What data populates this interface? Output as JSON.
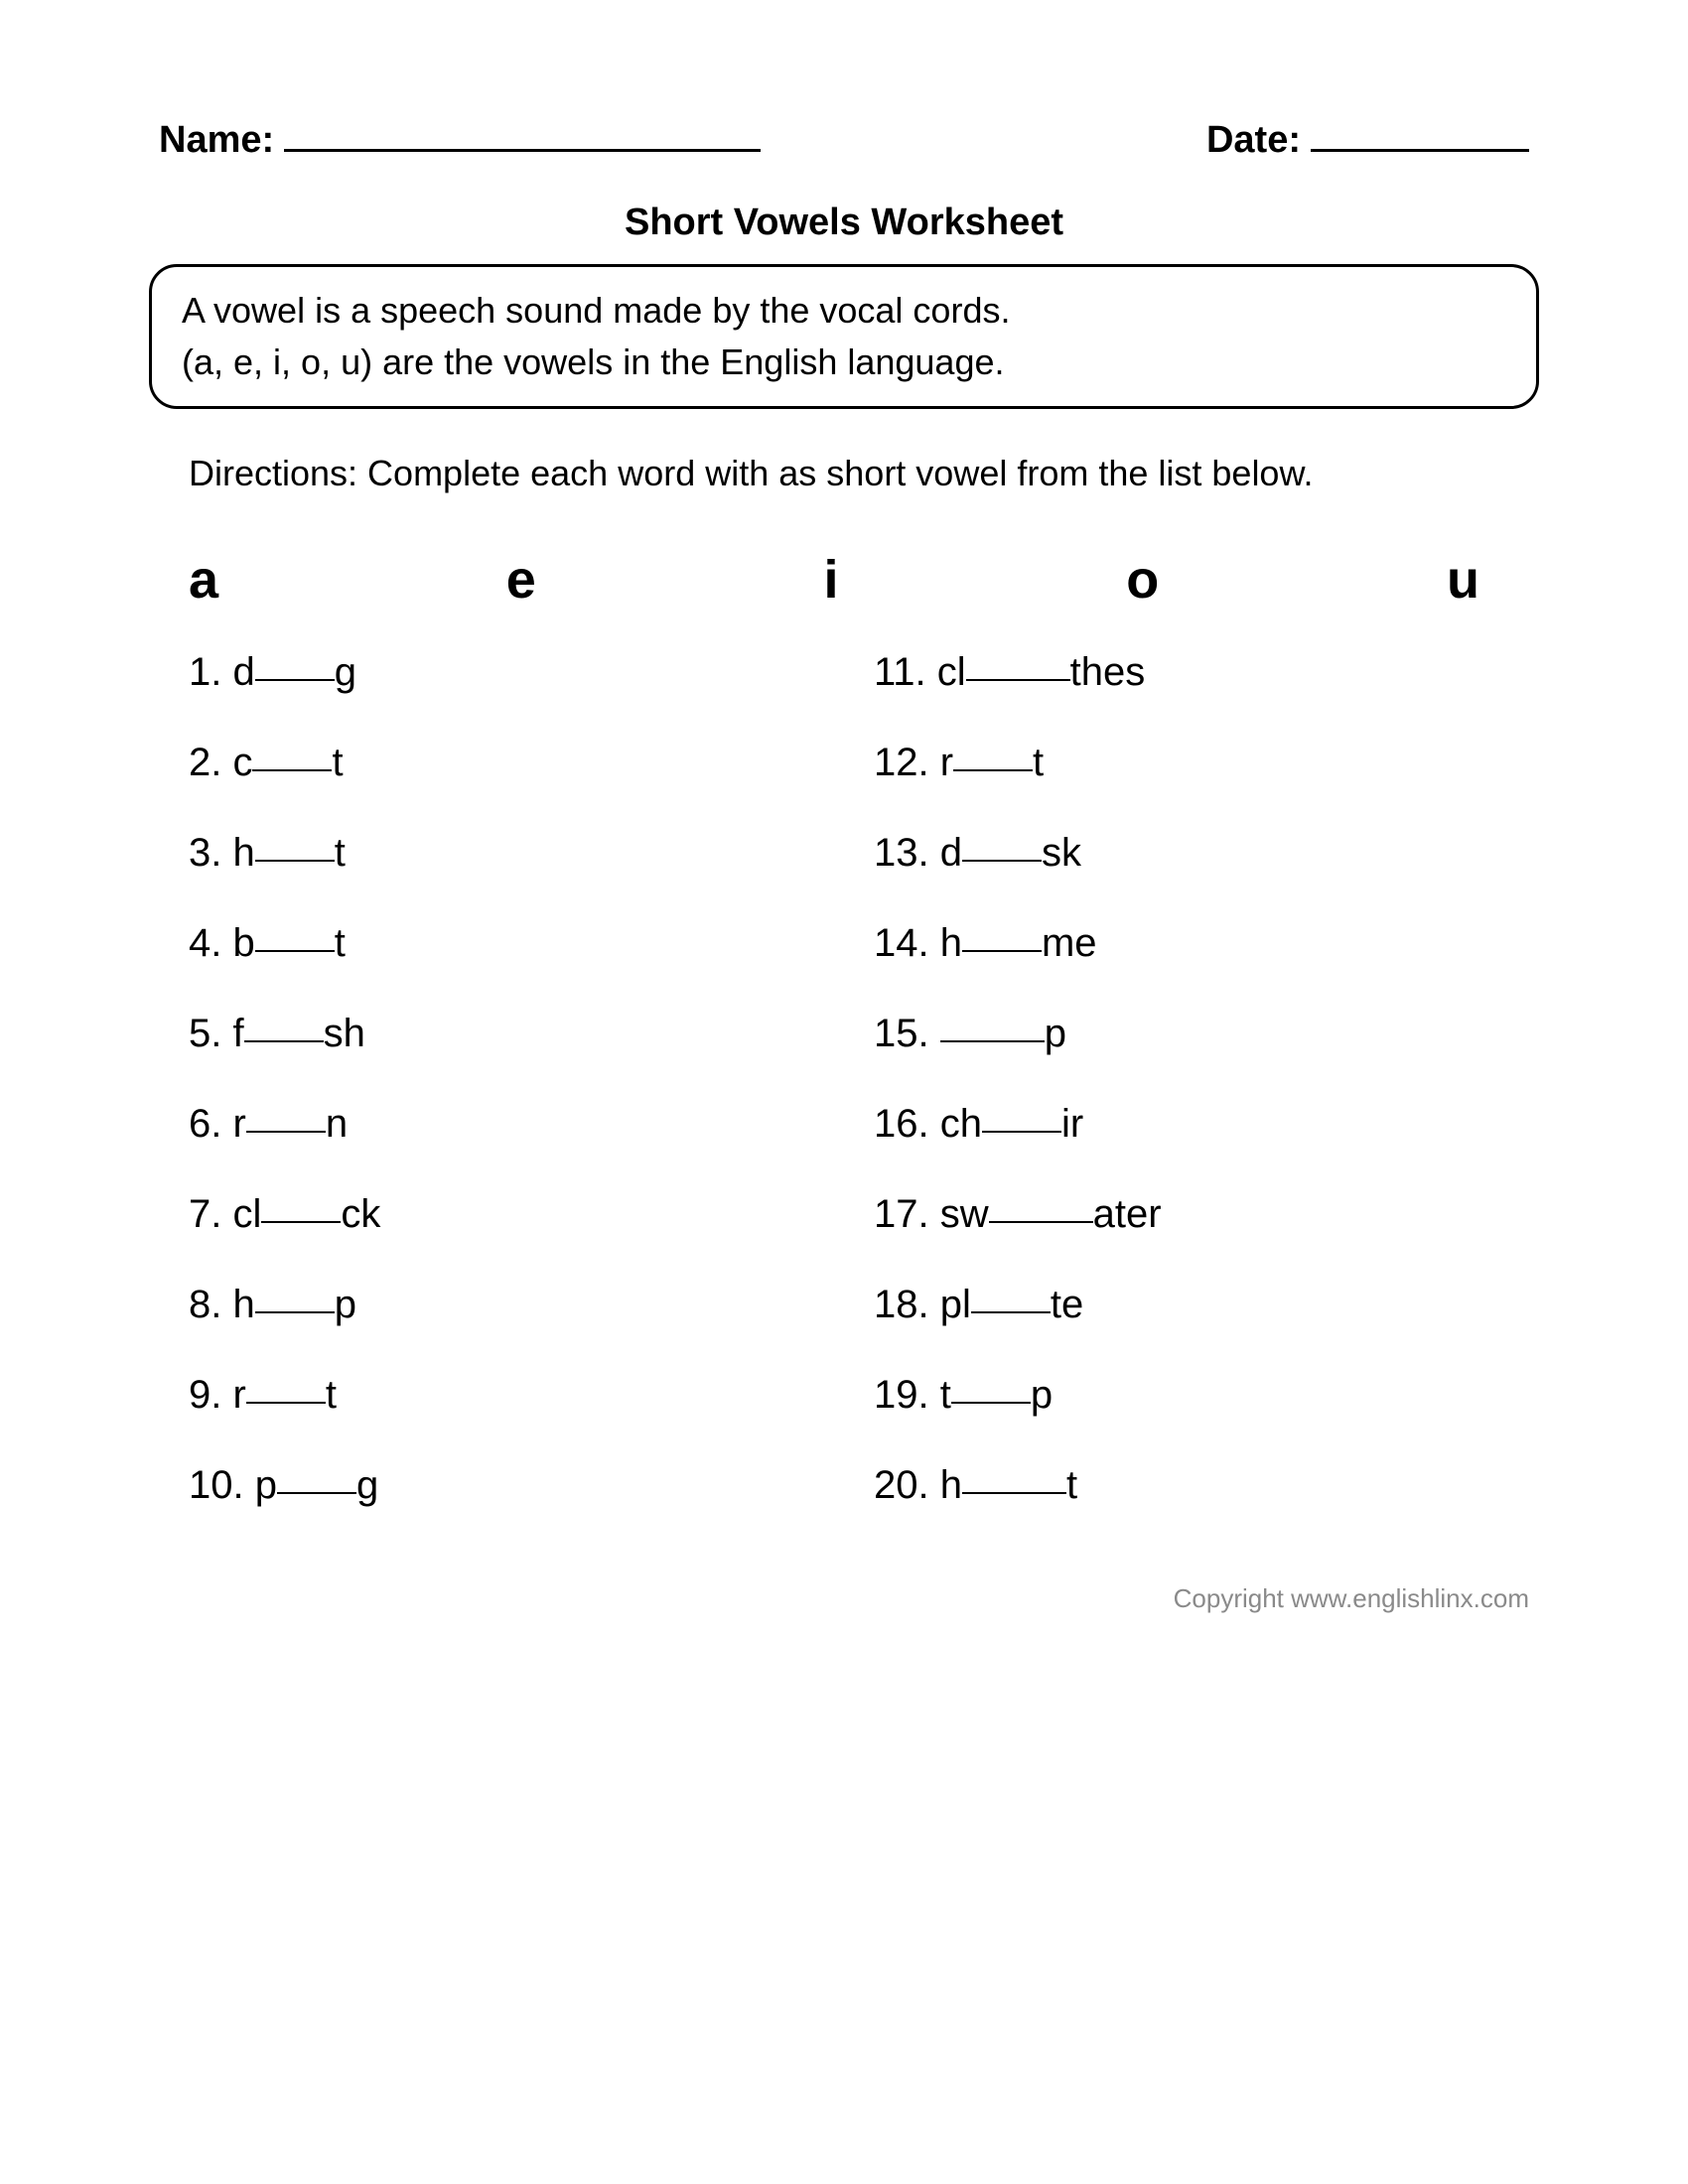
{
  "header": {
    "name_label": "Name:",
    "date_label": "Date:"
  },
  "title": "Short Vowels Worksheet",
  "info_box": {
    "line1": "A vowel is a speech sound made by the vocal cords.",
    "line2": "(a, e, i, o, u) are the vowels in the English language."
  },
  "directions": "Directions: Complete each word with as short vowel from the list below.",
  "vowels": [
    "a",
    "e",
    "i",
    "o",
    "u"
  ],
  "questions_left": [
    {
      "num": "1.",
      "pre": "d",
      "post": "g",
      "blank": "blank3"
    },
    {
      "num": "2.",
      "pre": "c",
      "post": "t",
      "blank": "blank3"
    },
    {
      "num": "3.",
      "pre": "h",
      "post": "t",
      "blank": "blank3"
    },
    {
      "num": "4.",
      "pre": "b",
      "post": "t",
      "blank": "blank3"
    },
    {
      "num": "5.",
      "pre": "f",
      "post": "sh",
      "blank": "blank3"
    },
    {
      "num": "6.",
      "pre": "r",
      "post": "n",
      "blank": "blank3"
    },
    {
      "num": "7.",
      "pre": "cl",
      "post": "ck",
      "blank": "blank3"
    },
    {
      "num": "8.",
      "pre": "h",
      "post": "p",
      "blank": "blank3"
    },
    {
      "num": "9.",
      "pre": "r",
      "post": "t",
      "blank": "blank3"
    },
    {
      "num": "10.",
      "pre": "p",
      "post": "g",
      "blank": "blank3"
    }
  ],
  "questions_right": [
    {
      "num": "11.",
      "pre": "cl",
      "post": "thes",
      "blank": "blank4"
    },
    {
      "num": "12.",
      "pre": "r",
      "post": "t",
      "blank": "blank3"
    },
    {
      "num": "13.",
      "pre": "d",
      "post": "sk",
      "blank": "blank3"
    },
    {
      "num": "14.",
      "pre": "h",
      "post": "me",
      "blank": "blank3"
    },
    {
      "num": "15.",
      "pre": "",
      "post": "p",
      "blank": "blank4"
    },
    {
      "num": "16.",
      "pre": "ch",
      "post": "ir",
      "blank": "blank3"
    },
    {
      "num": "17.",
      "pre": "sw",
      "post": "ater",
      "blank": "blank4"
    },
    {
      "num": "18.",
      "pre": "pl",
      "post": "te",
      "blank": "blank3"
    },
    {
      "num": "19.",
      "pre": "t",
      "post": "p",
      "blank": "blank3"
    },
    {
      "num": "20.",
      "pre": "h",
      "post": "t",
      "blank": "blank4"
    }
  ],
  "copyright": "Copyright www.englishlinx.com",
  "colors": {
    "text": "#000000",
    "background": "#ffffff",
    "copyright": "#8a8a8a"
  },
  "fonts": {
    "body_family": "Verdana",
    "body_size_pt": 28,
    "title_size_pt": 28,
    "vowel_size_pt": 40,
    "copyright_family": "Arial",
    "copyright_size_pt": 20
  }
}
